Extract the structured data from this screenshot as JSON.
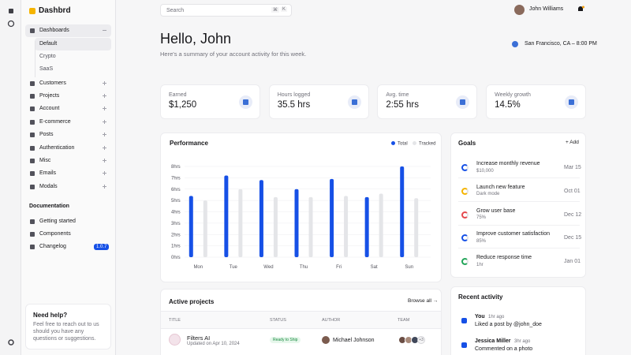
{
  "sidebar": {
    "brand": "Dashbrd",
    "nav": [
      {
        "label": "Dashboards",
        "children": [
          "Default",
          "Crypto",
          "SaaS"
        ]
      },
      {
        "label": "Customers"
      },
      {
        "label": "Projects"
      },
      {
        "label": "Account"
      },
      {
        "label": "E-commerce"
      },
      {
        "label": "Posts"
      },
      {
        "label": "Authentication"
      },
      {
        "label": "Misc"
      },
      {
        "label": "Emails"
      },
      {
        "label": "Modals"
      }
    ],
    "docs_title": "Documentation",
    "docs": [
      "Getting started",
      "Components",
      "Changelog"
    ],
    "changelog_badge": "1.0.7",
    "help": {
      "title": "Need help?",
      "text": "Feel free to reach out to us should you have any questions or suggestions."
    }
  },
  "header": {
    "search_placeholder": "Search",
    "shortcut": [
      "⌘",
      "K"
    ],
    "user": "John Williams",
    "greeting": "Hello, John",
    "subtitle": "Here's a summary of your account activity for this week.",
    "location": "San Francisco, CA – 8:00 PM"
  },
  "stats": [
    {
      "label": "Earned",
      "value": "$1,250"
    },
    {
      "label": "Hours logged",
      "value": "35.5 hrs"
    },
    {
      "label": "Avg. time",
      "value": "2:55 hrs"
    },
    {
      "label": "Weekly growth",
      "value": "14.5%"
    }
  ],
  "chart_data": {
    "type": "bar",
    "title": "Performance",
    "categories": [
      "Mon",
      "Tue",
      "Wed",
      "Thu",
      "Fri",
      "Sat",
      "Sun"
    ],
    "series": [
      {
        "name": "Total",
        "color": "#1650e6",
        "values": [
          5.4,
          7.2,
          6.8,
          6,
          6.9,
          5.3,
          8
        ]
      },
      {
        "name": "Tracked",
        "color": "#e4e5e8",
        "values": [
          5,
          6,
          5.3,
          5.3,
          5.4,
          5.6,
          5.2
        ]
      }
    ],
    "ylim": [
      0,
      8
    ],
    "yticks": [
      {
        "value": 0,
        "label": "0hrs"
      },
      {
        "value": 1,
        "label": "1hrs"
      },
      {
        "value": 2,
        "label": "2hrs"
      },
      {
        "value": 3,
        "label": "3hrs"
      },
      {
        "value": 4,
        "label": "4hrs"
      },
      {
        "value": 5,
        "label": "5hrs"
      },
      {
        "value": 6,
        "label": "6hrs"
      },
      {
        "value": 7,
        "label": "7hrs"
      },
      {
        "value": 8,
        "label": "8hrs"
      }
    ],
    "grid": true,
    "legend": "top-right"
  },
  "goals": {
    "title": "Goals",
    "action": "+ Add",
    "items": [
      {
        "name": "Increase monthly revenue",
        "detail": "$10,000",
        "date": "Mar 15"
      },
      {
        "name": "Launch new feature",
        "detail": "Dark mode",
        "date": "Oct 01"
      },
      {
        "name": "Grow user base",
        "detail": "75%",
        "date": "Dec 12"
      },
      {
        "name": "Improve customer satisfaction",
        "detail": "85%",
        "date": "Dec 15"
      },
      {
        "name": "Reduce response time",
        "detail": "1hr",
        "date": "Jan 01"
      }
    ]
  },
  "projects": {
    "title": "Active projects",
    "action": "Browse all →",
    "columns": [
      "TITLE",
      "STATUS",
      "AUTHOR",
      "TEAM"
    ],
    "rows": [
      {
        "title": "Filters AI",
        "updated": "Updated on Apr 10, 2024",
        "status": "Ready to Ship",
        "author": "Michael Johnson",
        "team_extra": "+3"
      }
    ]
  },
  "activity": {
    "title": "Recent activity",
    "items": [
      {
        "user": "You",
        "time": "1hr ago",
        "text": "Liked a post by @john_doe"
      },
      {
        "user": "Jessica Miller",
        "time": "3hr ago",
        "text": "Commented on a photo"
      }
    ]
  }
}
